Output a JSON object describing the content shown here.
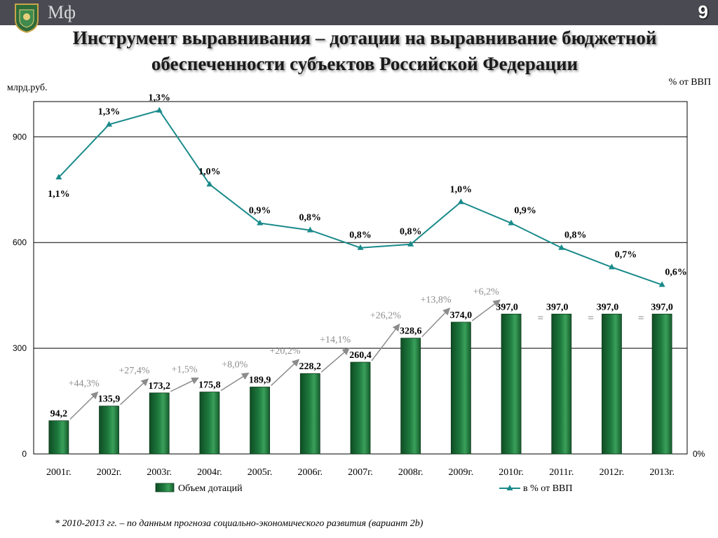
{
  "header": {
    "brand": "Мф",
    "page_number": "9",
    "title_line1": "Инструмент выравнивания – дотации на выравнивание бюджетной",
    "title_line2": "обеспеченности субъектов Российской Федерации"
  },
  "footnote": "* 2010-2013 гг. – по данным прогноза социально-экономического развития (вариант 2b)",
  "colors": {
    "bar": "#1e7a3e",
    "line": "#1a8a8a",
    "growth": "#8c8c8c",
    "topbar": "#4a4a52"
  },
  "chart_data": {
    "type": "bar",
    "categories": [
      "2001г.",
      "2002г.",
      "2003г.",
      "2004г.",
      "2005г.",
      "2006г.",
      "2007г.",
      "2008г.",
      "2009г.",
      "2010г.",
      "2011г.",
      "2012г.",
      "2013г."
    ],
    "ylabel": "млрд.руб.",
    "y2label": "% от ВВП",
    "ylim": [
      0,
      1000
    ],
    "yticks": [
      0,
      300,
      600,
      900
    ],
    "y2ticks": [
      "0%"
    ],
    "grid": true,
    "legend_position": "bottom",
    "series": [
      {
        "name": "Объем дотаций",
        "type": "bar",
        "values": [
          94.2,
          135.9,
          173.2,
          175.8,
          189.9,
          228.2,
          260.4,
          328.6,
          374.0,
          397.0,
          397.0,
          397.0,
          397.0
        ],
        "labels": [
          "94,2",
          "135,9",
          "173,2",
          "175,8",
          "189,9",
          "228,2",
          "260,4",
          "328,6",
          "374,0",
          "397,0",
          "397,0",
          "397,0",
          "397,0"
        ]
      },
      {
        "name": "в % от ВВП",
        "type": "line",
        "axis": "right",
        "values": [
          1.1,
          1.3,
          1.3,
          1.0,
          0.9,
          0.8,
          0.8,
          0.8,
          1.0,
          0.9,
          0.8,
          0.7,
          0.6
        ],
        "plot_values": [
          785,
          935,
          975,
          765,
          655,
          635,
          585,
          595,
          715,
          655,
          585,
          530,
          480
        ],
        "labels": [
          "1,1%",
          "1,3%",
          "1,3%",
          "1,0%",
          "0,9%",
          "0,8%",
          "0,8%",
          "0,8%",
          "1,0%",
          "0,9%",
          "0,8%",
          "0,7%",
          "0,6%"
        ]
      }
    ],
    "growth_annotations": [
      "+44,3%",
      "+27,4%",
      "+1,5%",
      "+8,0%",
      "+20,2%",
      "+14,1%",
      "+26,2%",
      "+13,8%",
      "+6,2%",
      "=",
      "=",
      "="
    ]
  }
}
